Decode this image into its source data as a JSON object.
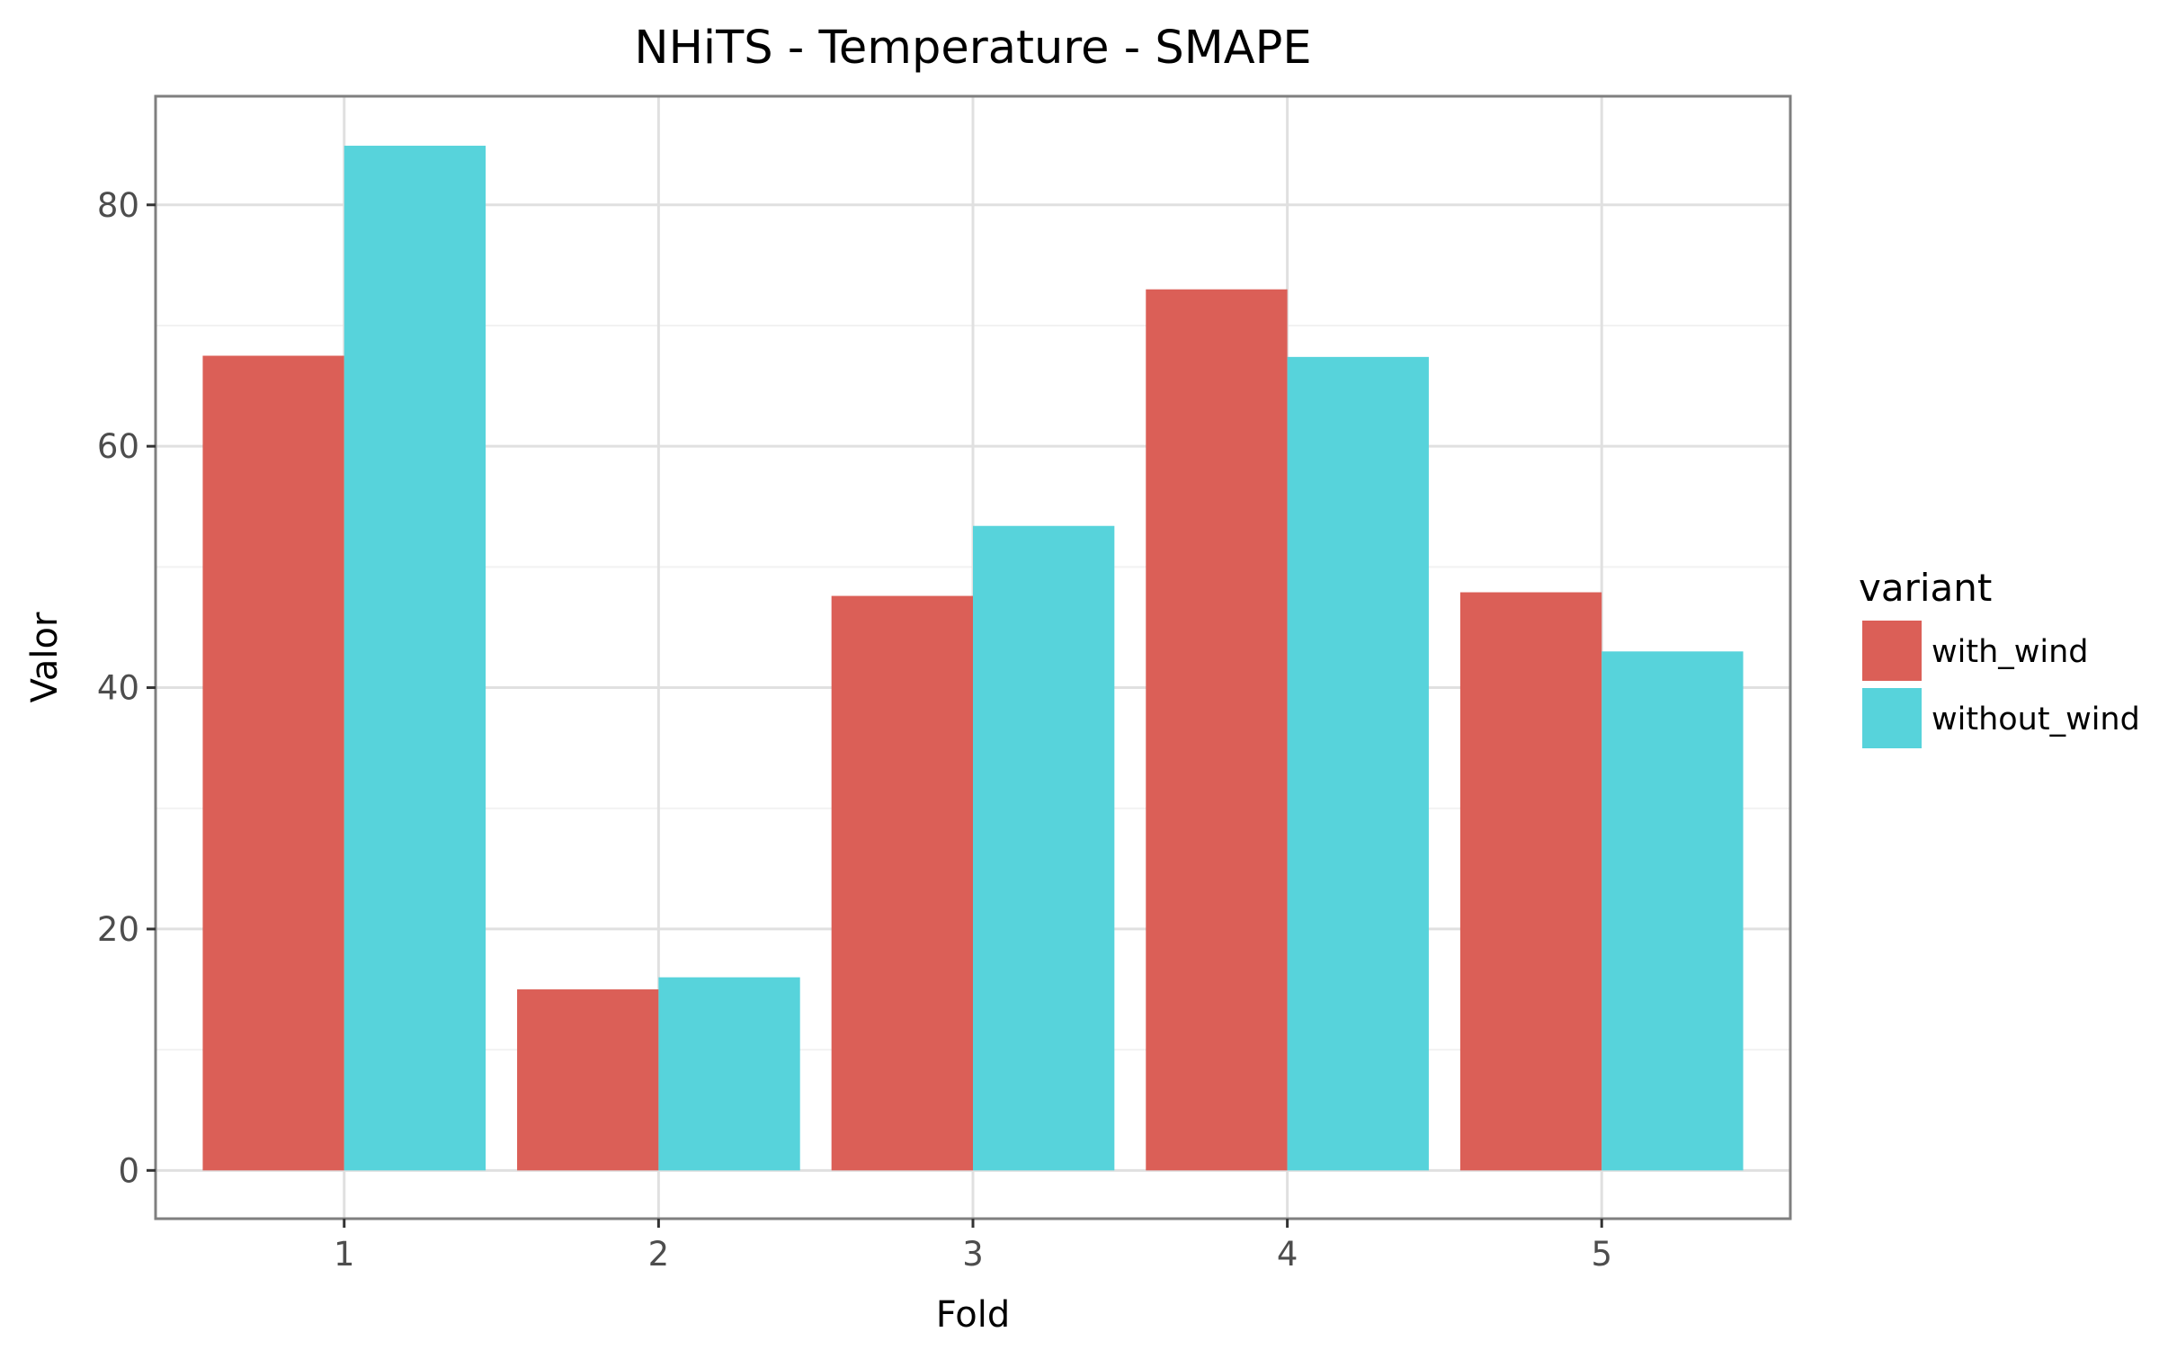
{
  "chart_data": {
    "type": "bar",
    "title": "NHiTS - Temperature - SMAPE",
    "xlabel": "Fold",
    "ylabel": "Valor",
    "categories": [
      "1",
      "2",
      "3",
      "4",
      "5"
    ],
    "series": [
      {
        "name": "with_wind",
        "color": "#db5f57",
        "values": [
          67.5,
          15.0,
          47.6,
          73.0,
          47.9
        ]
      },
      {
        "name": "without_wind",
        "color": "#57d3db",
        "values": [
          84.9,
          16.0,
          53.4,
          67.4,
          43.0
        ]
      }
    ],
    "ylim": [
      -4,
      89
    ],
    "yticks": [
      0,
      20,
      40,
      60,
      80
    ],
    "grid": true,
    "legend": {
      "title": "variant",
      "position": "right"
    }
  }
}
